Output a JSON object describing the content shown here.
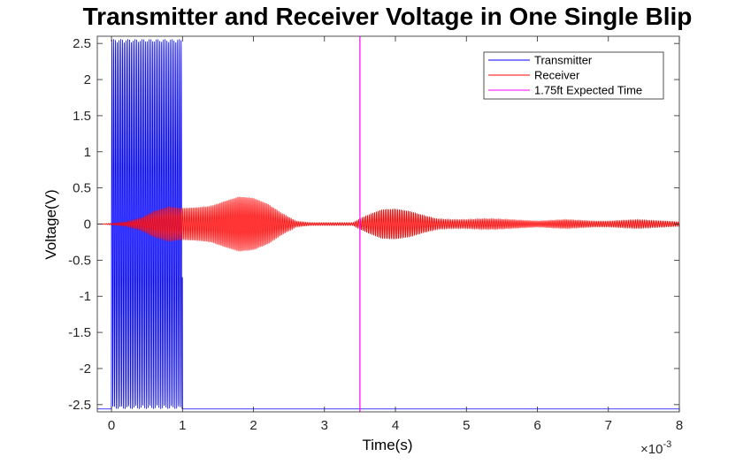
{
  "chart_data": {
    "type": "line",
    "title": "Transmitter and Receiver Voltage in One Single Blip",
    "xlabel": "Time(s)",
    "ylabel": "Voltage(V)",
    "x_multiplier_label": "×10",
    "x_multiplier_exponent": "-3",
    "xlim": [
      -0.0002,
      0.008
    ],
    "ylim": [
      -2.6,
      2.6
    ],
    "xticks": [
      0,
      1,
      2,
      3,
      4,
      5,
      6,
      7,
      8
    ],
    "yticks": [
      -2.5,
      -2,
      -1.5,
      -1,
      -0.5,
      0,
      0.5,
      1,
      1.5,
      2,
      2.5
    ],
    "legend_position": "top-right",
    "series": [
      {
        "name": "Transmitter",
        "color": "#0000ff",
        "kind": "oscillation",
        "carrier_hz": 40000,
        "baseline": -2.56,
        "active_range": [
          0,
          0.001
        ],
        "amplitude": 2.56,
        "envelope": [
          [
            0,
            2.56
          ],
          [
            0.001,
            2.56
          ]
        ]
      },
      {
        "name": "Receiver",
        "color": "#ff0000",
        "kind": "oscillation",
        "carrier_hz": 40000,
        "baseline": 0,
        "envelope": [
          [
            -0.0002,
            0.0
          ],
          [
            0.0,
            0.01
          ],
          [
            0.0002,
            0.03
          ],
          [
            0.0004,
            0.08
          ],
          [
            0.0006,
            0.18
          ],
          [
            0.0008,
            0.24
          ],
          [
            0.001,
            0.22
          ],
          [
            0.0012,
            0.23
          ],
          [
            0.0014,
            0.25
          ],
          [
            0.0016,
            0.32
          ],
          [
            0.0018,
            0.38
          ],
          [
            0.002,
            0.36
          ],
          [
            0.0022,
            0.28
          ],
          [
            0.0024,
            0.15
          ],
          [
            0.0026,
            0.04
          ],
          [
            0.0028,
            0.02
          ],
          [
            0.003,
            0.02
          ],
          [
            0.0032,
            0.02
          ],
          [
            0.0034,
            0.02
          ],
          [
            0.0036,
            0.12
          ],
          [
            0.0038,
            0.2
          ],
          [
            0.004,
            0.21
          ],
          [
            0.0042,
            0.18
          ],
          [
            0.0044,
            0.12
          ],
          [
            0.0046,
            0.07
          ],
          [
            0.0048,
            0.06
          ],
          [
            0.005,
            0.06
          ],
          [
            0.0052,
            0.07
          ],
          [
            0.0054,
            0.07
          ],
          [
            0.0056,
            0.06
          ],
          [
            0.0058,
            0.05
          ],
          [
            0.006,
            0.04
          ],
          [
            0.0062,
            0.05
          ],
          [
            0.0064,
            0.06
          ],
          [
            0.0066,
            0.05
          ],
          [
            0.0068,
            0.04
          ],
          [
            0.007,
            0.04
          ],
          [
            0.0072,
            0.05
          ],
          [
            0.0074,
            0.06
          ],
          [
            0.0076,
            0.05
          ],
          [
            0.0078,
            0.04
          ],
          [
            0.008,
            0.03
          ]
        ]
      },
      {
        "name": "1.75ft Expected Time",
        "color": "#ff00ff",
        "kind": "vline",
        "x": 0.0035
      }
    ]
  }
}
